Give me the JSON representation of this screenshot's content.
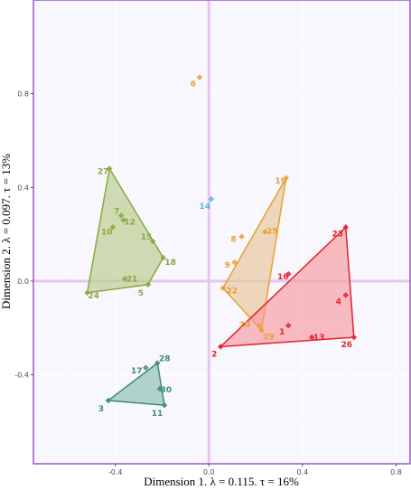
{
  "chart_data": {
    "type": "scatter",
    "title": "",
    "xlabel": "Dimension 1.   λ = 0.115.  τ = 16%",
    "ylabel": "Dimension 2.  λ = 0.097.  τ = 13%",
    "xlim": [
      -0.75,
      0.86
    ],
    "ylim": [
      -0.78,
      1.2
    ],
    "xticks": [
      -0.4,
      0.0,
      0.4,
      0.8
    ],
    "xtick_labels": [
      "-0.4",
      "0.0",
      "0.4",
      "0.8"
    ],
    "yticks": [
      -0.4,
      0.0,
      0.4,
      0.8
    ],
    "ytick_labels": [
      "-0.4",
      "0.0",
      "0.4",
      "0.8"
    ],
    "grid": true,
    "legend": "none",
    "colors": {
      "plot_background": "#f7f7fd",
      "panel_border": "#9b59c7",
      "zero_lines": "#e6c6ee",
      "grid": "#ffffff"
    },
    "clusters": [
      {
        "color": "#8aa83e",
        "fill": "#b9cc8a",
        "hull": [
          "24",
          "27",
          "18",
          "5"
        ],
        "points": [
          {
            "label": "27",
            "x": -0.425,
            "y": 0.48
          },
          {
            "label": "7",
            "x": -0.375,
            "y": 0.28
          },
          {
            "label": "12",
            "x": -0.365,
            "y": 0.26
          },
          {
            "label": "10",
            "x": -0.41,
            "y": 0.23
          },
          {
            "label": "15",
            "x": -0.24,
            "y": 0.17
          },
          {
            "label": "18",
            "x": -0.195,
            "y": 0.1
          },
          {
            "label": "21",
            "x": -0.36,
            "y": 0.01
          },
          {
            "label": "24",
            "x": -0.52,
            "y": -0.05
          },
          {
            "label": "5",
            "x": -0.26,
            "y": -0.015
          }
        ]
      },
      {
        "color": "#e8a030",
        "fill": "#eac499",
        "hull": [
          "19",
          "29",
          "22"
        ],
        "points": [
          {
            "label": "6",
            "x": -0.04,
            "y": 0.87
          },
          {
            "label": "19",
            "x": 0.33,
            "y": 0.44
          },
          {
            "label": "25",
            "x": 0.24,
            "y": 0.21
          },
          {
            "label": "8",
            "x": 0.14,
            "y": 0.19
          },
          {
            "label": "9",
            "x": 0.11,
            "y": 0.08
          },
          {
            "label": "22",
            "x": 0.06,
            "y": -0.03
          },
          {
            "label": "20",
            "x": 0.215,
            "y": -0.19
          },
          {
            "label": "29",
            "x": 0.225,
            "y": -0.21
          }
        ]
      },
      {
        "color": "#5ab4e0",
        "fill": "#5ab4e0",
        "hull": [],
        "points": [
          {
            "label": "14",
            "x": 0.01,
            "y": 0.35
          }
        ]
      },
      {
        "color": "#e8202a",
        "fill": "#f79aa0",
        "hull": [
          "23",
          "26",
          "2"
        ],
        "points": [
          {
            "label": "23",
            "x": 0.585,
            "y": 0.23
          },
          {
            "label": "16",
            "x": 0.34,
            "y": 0.03
          },
          {
            "label": "4",
            "x": 0.585,
            "y": -0.06
          },
          {
            "label": "1",
            "x": 0.34,
            "y": -0.19
          },
          {
            "label": "13",
            "x": 0.44,
            "y": -0.24
          },
          {
            "label": "26",
            "x": 0.62,
            "y": -0.24
          },
          {
            "label": "2",
            "x": 0.05,
            "y": -0.28
          }
        ]
      },
      {
        "color": "#3d8a7a",
        "fill": "#8cbdb3",
        "hull": [
          "28",
          "11",
          "3"
        ],
        "points": [
          {
            "label": "28",
            "x": -0.22,
            "y": -0.35
          },
          {
            "label": "17",
            "x": -0.27,
            "y": -0.37
          },
          {
            "label": "30",
            "x": -0.21,
            "y": -0.46
          },
          {
            "label": "3",
            "x": -0.43,
            "y": -0.51
          },
          {
            "label": "11",
            "x": -0.19,
            "y": -0.53
          }
        ]
      }
    ]
  }
}
